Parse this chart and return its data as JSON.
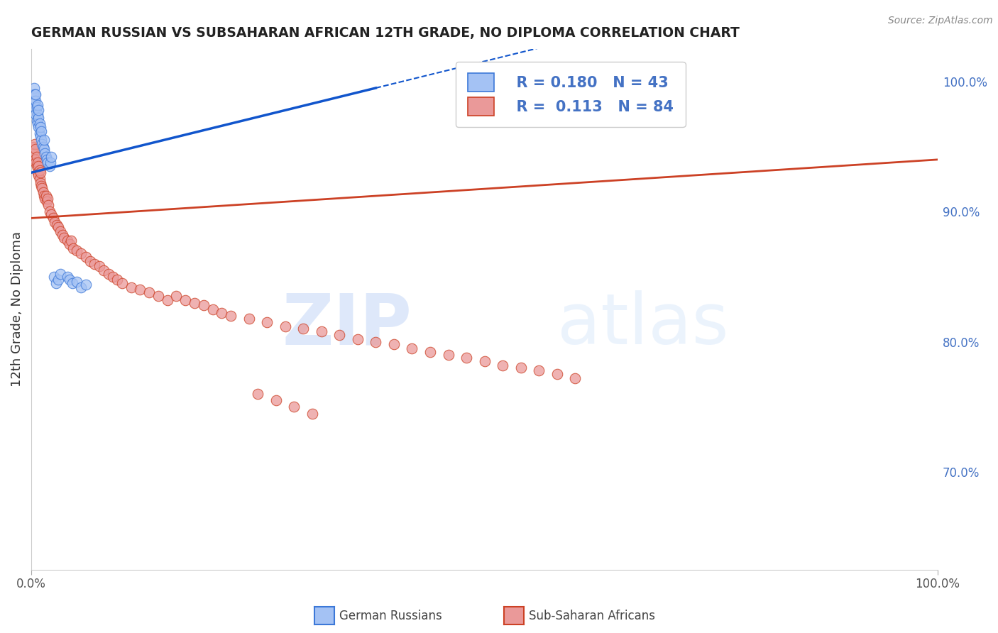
{
  "title": "GERMAN RUSSIAN VS SUBSAHARAN AFRICAN 12TH GRADE, NO DIPLOMA CORRELATION CHART",
  "source": "Source: ZipAtlas.com",
  "ylabel": "12th Grade, No Diploma",
  "right_yticks": [
    0.7,
    0.8,
    0.9,
    1.0
  ],
  "right_yticklabels": [
    "70.0%",
    "80.0%",
    "90.0%",
    "100.0%"
  ],
  "legend_blue_r": "R = 0.180",
  "legend_blue_n": "N = 43",
  "legend_pink_r": "R =  0.113",
  "legend_pink_n": "N = 84",
  "legend_label_blue": "German Russians",
  "legend_label_pink": "Sub-Saharan Africans",
  "blue_color": "#a4c2f4",
  "blue_edge_color": "#3c78d8",
  "pink_color": "#ea9999",
  "pink_edge_color": "#cc4125",
  "trend_blue_color": "#1155cc",
  "trend_pink_color": "#cc4125",
  "xlim": [
    0.0,
    1.0
  ],
  "ylim": [
    0.625,
    1.025
  ],
  "blue_x": [
    0.002,
    0.003,
    0.003,
    0.004,
    0.004,
    0.005,
    0.005,
    0.005,
    0.006,
    0.006,
    0.007,
    0.007,
    0.007,
    0.008,
    0.008,
    0.008,
    0.009,
    0.009,
    0.01,
    0.01,
    0.011,
    0.011,
    0.012,
    0.013,
    0.014,
    0.014,
    0.015,
    0.016,
    0.017,
    0.018,
    0.02,
    0.021,
    0.022,
    0.025,
    0.027,
    0.03,
    0.032,
    0.04,
    0.042,
    0.045,
    0.05,
    0.055,
    0.06
  ],
  "blue_y": [
    0.99,
    0.985,
    0.995,
    0.98,
    0.99,
    0.975,
    0.985,
    0.99,
    0.97,
    0.98,
    0.968,
    0.975,
    0.982,
    0.965,
    0.972,
    0.978,
    0.96,
    0.968,
    0.958,
    0.965,
    0.955,
    0.962,
    0.952,
    0.95,
    0.948,
    0.955,
    0.945,
    0.942,
    0.94,
    0.938,
    0.935,
    0.938,
    0.942,
    0.85,
    0.845,
    0.848,
    0.852,
    0.85,
    0.848,
    0.845,
    0.846,
    0.842,
    0.844
  ],
  "pink_x": [
    0.002,
    0.003,
    0.004,
    0.004,
    0.005,
    0.005,
    0.006,
    0.006,
    0.007,
    0.007,
    0.008,
    0.008,
    0.009,
    0.009,
    0.01,
    0.01,
    0.011,
    0.012,
    0.013,
    0.014,
    0.015,
    0.016,
    0.017,
    0.018,
    0.019,
    0.02,
    0.022,
    0.024,
    0.026,
    0.028,
    0.03,
    0.032,
    0.034,
    0.036,
    0.04,
    0.042,
    0.044,
    0.046,
    0.05,
    0.055,
    0.06,
    0.065,
    0.07,
    0.075,
    0.08,
    0.085,
    0.09,
    0.095,
    0.1,
    0.11,
    0.12,
    0.13,
    0.14,
    0.15,
    0.16,
    0.17,
    0.18,
    0.19,
    0.2,
    0.21,
    0.22,
    0.24,
    0.26,
    0.28,
    0.3,
    0.32,
    0.34,
    0.36,
    0.38,
    0.4,
    0.42,
    0.44,
    0.46,
    0.48,
    0.5,
    0.52,
    0.54,
    0.56,
    0.58,
    0.6,
    0.25,
    0.27,
    0.29,
    0.31
  ],
  "pink_y": [
    0.95,
    0.945,
    0.94,
    0.952,
    0.938,
    0.948,
    0.935,
    0.942,
    0.93,
    0.938,
    0.928,
    0.935,
    0.925,
    0.932,
    0.922,
    0.93,
    0.92,
    0.918,
    0.915,
    0.912,
    0.91,
    0.912,
    0.908,
    0.91,
    0.905,
    0.9,
    0.898,
    0.895,
    0.892,
    0.89,
    0.888,
    0.885,
    0.882,
    0.88,
    0.878,
    0.875,
    0.878,
    0.872,
    0.87,
    0.868,
    0.865,
    0.862,
    0.86,
    0.858,
    0.855,
    0.852,
    0.85,
    0.848,
    0.845,
    0.842,
    0.84,
    0.838,
    0.835,
    0.832,
    0.835,
    0.832,
    0.83,
    0.828,
    0.825,
    0.822,
    0.82,
    0.818,
    0.815,
    0.812,
    0.81,
    0.808,
    0.805,
    0.802,
    0.8,
    0.798,
    0.795,
    0.792,
    0.79,
    0.788,
    0.785,
    0.782,
    0.78,
    0.778,
    0.775,
    0.772,
    0.76,
    0.755,
    0.75,
    0.745
  ],
  "watermark_zip": "ZIP",
  "watermark_atlas": "atlas",
  "background_color": "#ffffff",
  "grid_color": "#d0d0d0",
  "trend_blue_x0": 0.0,
  "trend_blue_y0": 0.93,
  "trend_blue_x1": 0.38,
  "trend_blue_y1": 0.995,
  "trend_pink_x0": 0.0,
  "trend_pink_y0": 0.895,
  "trend_pink_x1": 1.0,
  "trend_pink_y1": 0.94
}
